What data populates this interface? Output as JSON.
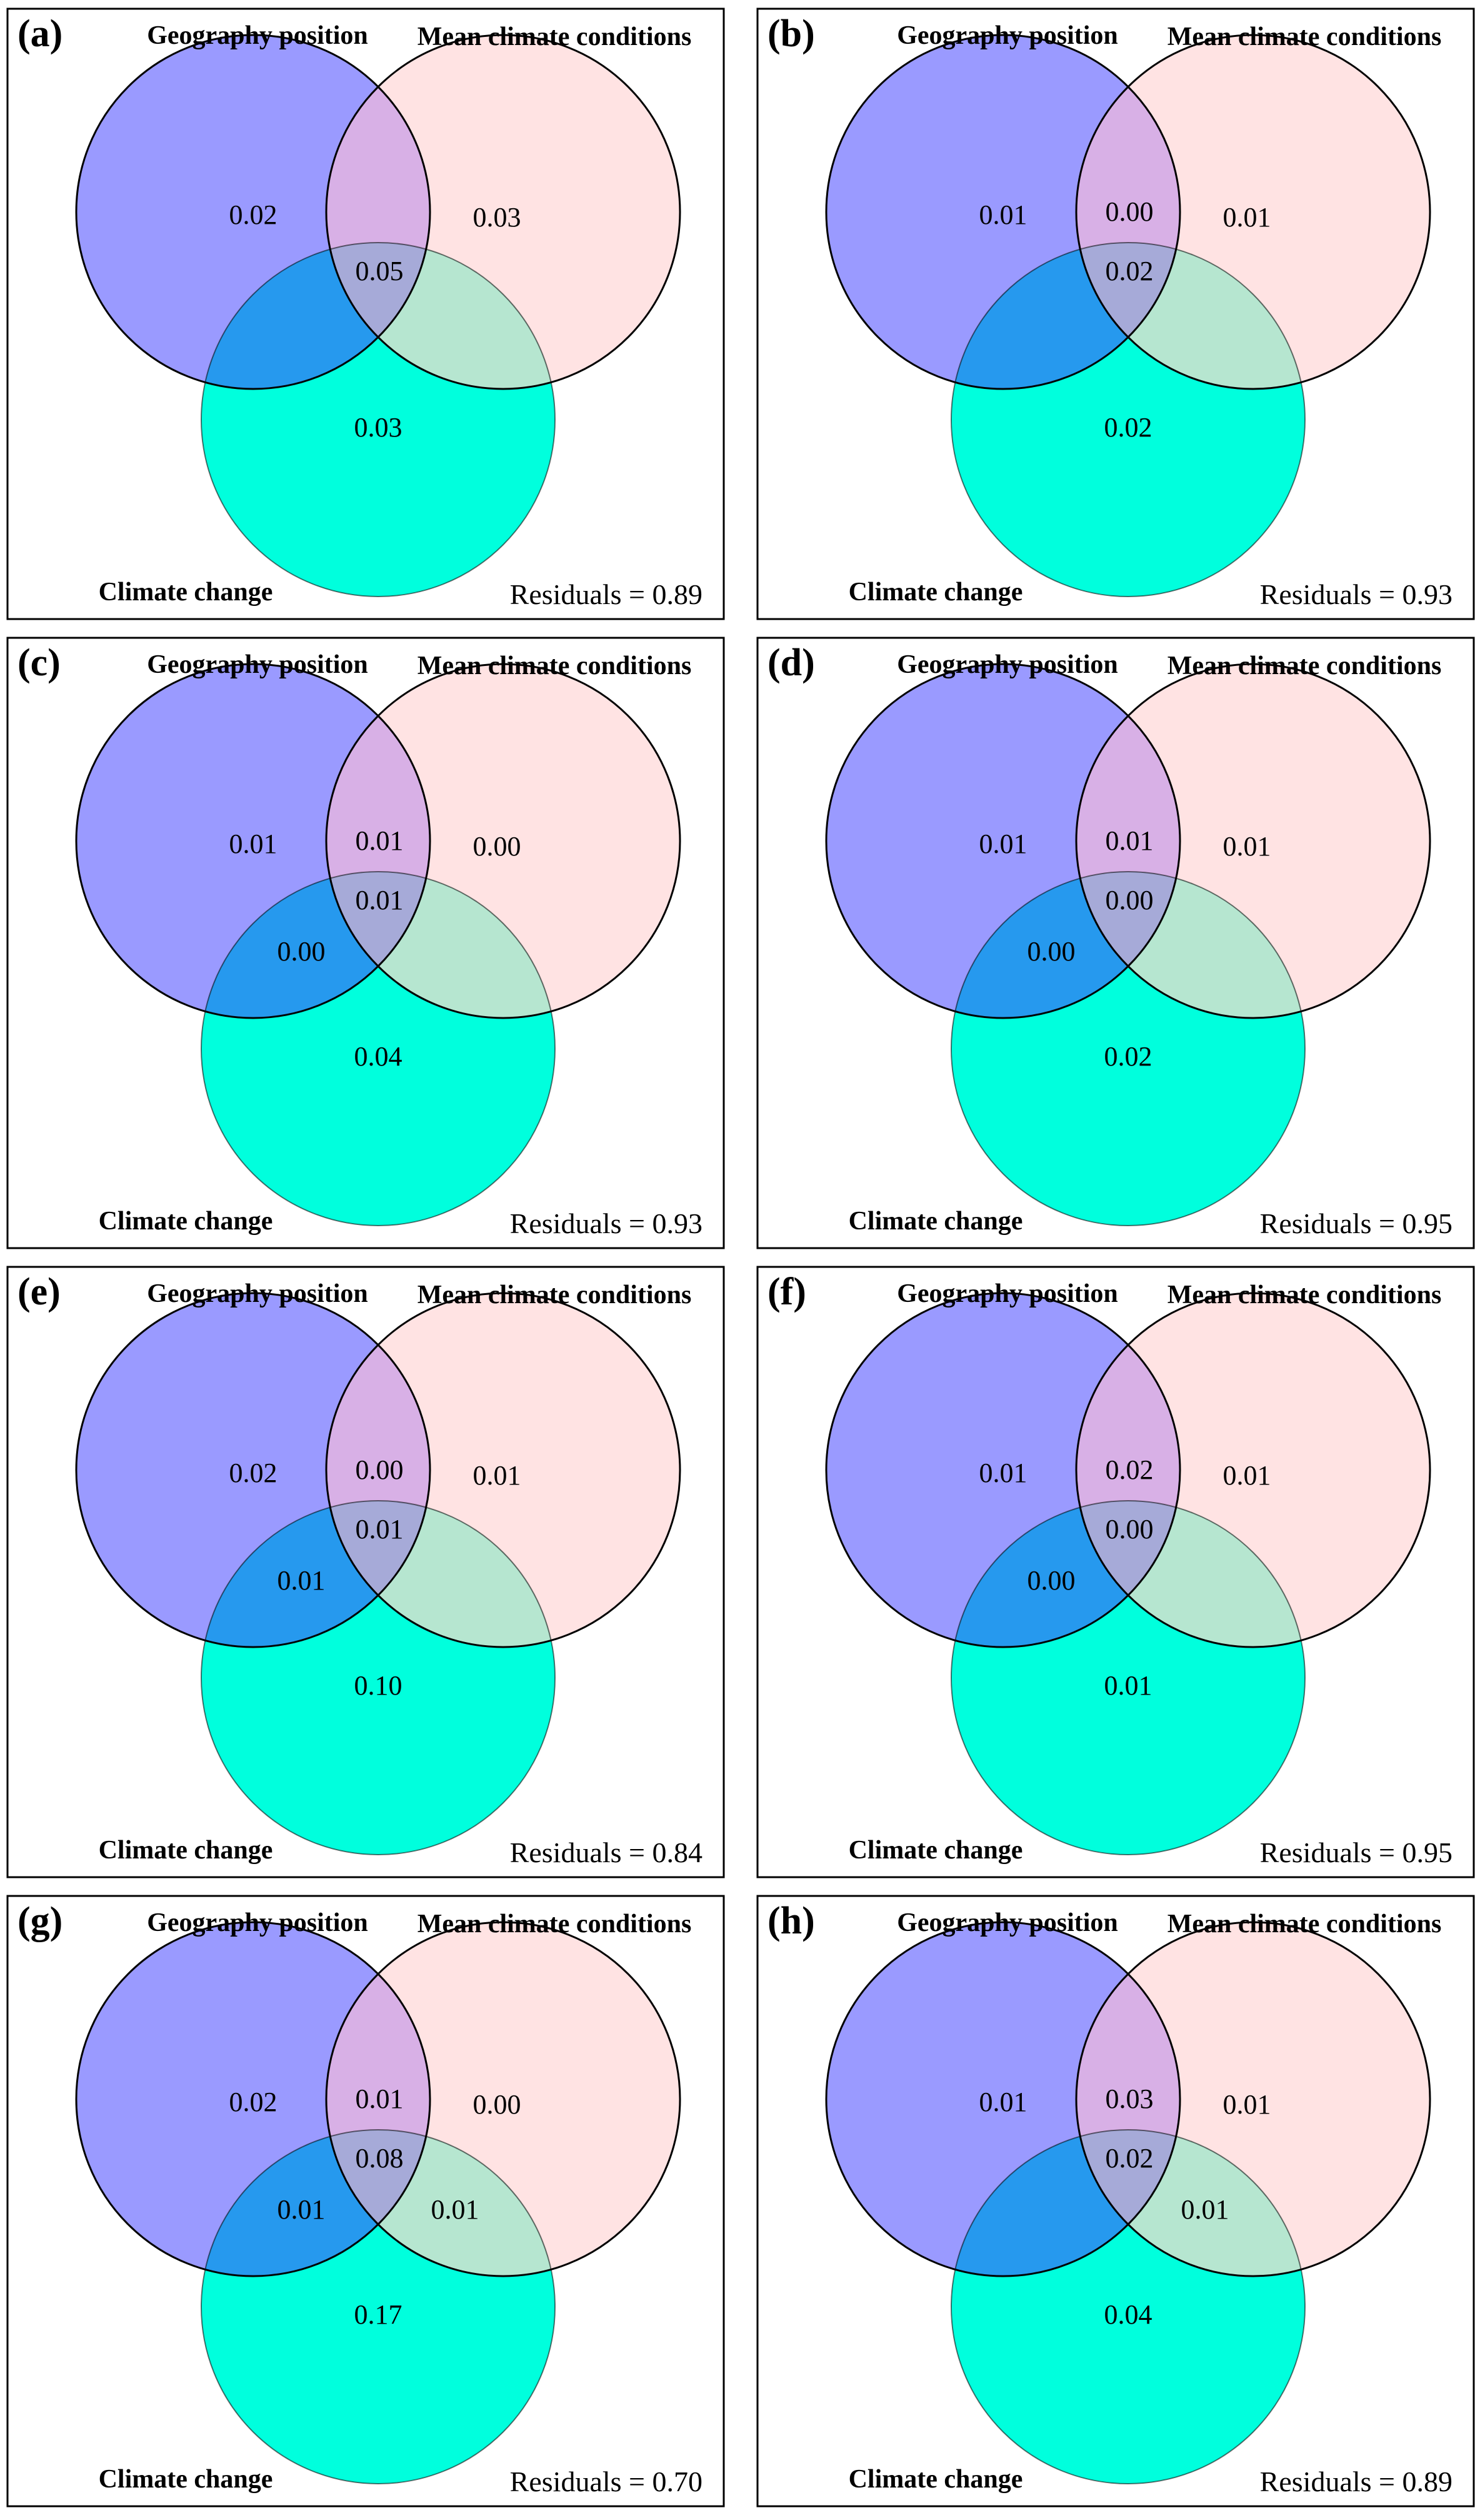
{
  "figure": {
    "set_labels": {
      "geography": "Geography position",
      "climate_mean": "Mean climate conditions",
      "climate_change": "Climate change"
    },
    "residual_prefix": "Residuals = ",
    "colors": {
      "geography": "#9a9aff",
      "climate_mean": "#ffe3e3",
      "climate_change": "#00ffdd",
      "geo_mean": "#d8b0e6",
      "geo_change": "#2699ee",
      "mean_change": "#b6e6d0",
      "all_three": "#a6aad8",
      "outline": "#000000"
    }
  },
  "panels": [
    {
      "label": "(a)",
      "values": {
        "geo_only": "0.02",
        "mean_only": "0.03",
        "geo_mean": "",
        "all": "0.05",
        "geo_change": "",
        "mean_change": "",
        "change_only": "0.03"
      },
      "residuals": "0.89"
    },
    {
      "label": "(b)",
      "values": {
        "geo_only": "0.01",
        "mean_only": "0.01",
        "geo_mean": "0.00",
        "all": "0.02",
        "geo_change": "",
        "mean_change": "",
        "change_only": "0.02"
      },
      "residuals": "0.93"
    },
    {
      "label": "(c)",
      "values": {
        "geo_only": "0.01",
        "mean_only": "0.00",
        "geo_mean": "0.01",
        "all": "0.01",
        "geo_change": "0.00",
        "mean_change": "",
        "change_only": "0.04"
      },
      "residuals": "0.93"
    },
    {
      "label": "(d)",
      "values": {
        "geo_only": "0.01",
        "mean_only": "0.01",
        "geo_mean": "0.01",
        "all": "0.00",
        "geo_change": "0.00",
        "mean_change": "",
        "change_only": "0.02"
      },
      "residuals": "0.95"
    },
    {
      "label": "(e)",
      "values": {
        "geo_only": "0.02",
        "mean_only": "0.01",
        "geo_mean": "0.00",
        "all": "0.01",
        "geo_change": "0.01",
        "mean_change": "",
        "change_only": "0.10"
      },
      "residuals": "0.84"
    },
    {
      "label": "(f)",
      "values": {
        "geo_only": "0.01",
        "mean_only": "0.01",
        "geo_mean": "0.02",
        "all": "0.00",
        "geo_change": "0.00",
        "mean_change": "",
        "change_only": "0.01"
      },
      "residuals": "0.95"
    },
    {
      "label": "(g)",
      "values": {
        "geo_only": "0.02",
        "mean_only": "0.00",
        "geo_mean": "0.01",
        "all": "0.08",
        "geo_change": "0.01",
        "mean_change": "0.01",
        "change_only": "0.17"
      },
      "residuals": "0.70"
    },
    {
      "label": "(h)",
      "values": {
        "geo_only": "0.01",
        "mean_only": "0.01",
        "geo_mean": "0.03",
        "all": "0.02",
        "geo_change": "",
        "mean_change": "0.01",
        "change_only": "0.04"
      },
      "residuals": "0.89"
    }
  ]
}
